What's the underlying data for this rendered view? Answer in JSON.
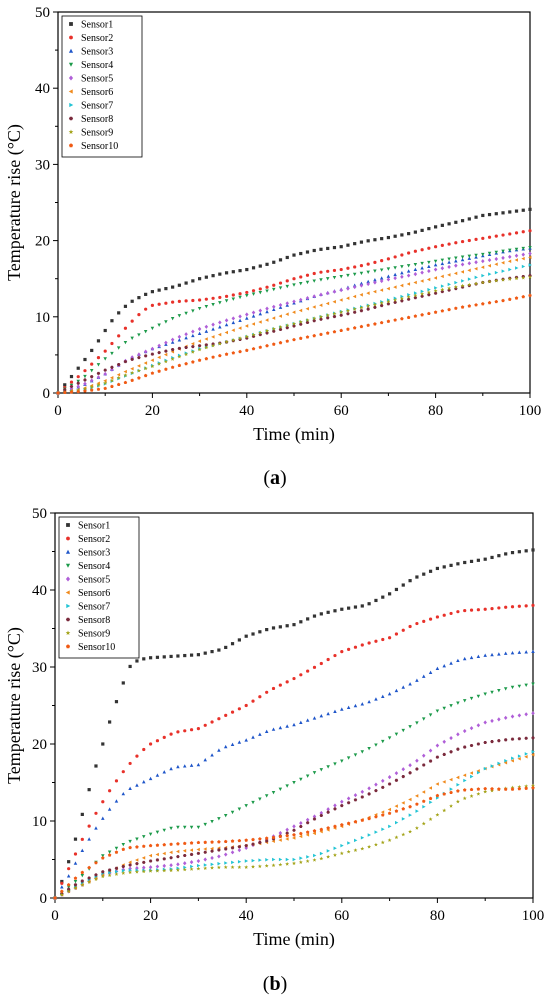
{
  "chart_data": [
    {
      "type": "scatter",
      "panel_label": "a",
      "xlabel": "Time (min)",
      "ylabel": "Temperature rise (°C)",
      "xlim": [
        0,
        100
      ],
      "ylim": [
        0,
        50
      ],
      "xticks": [
        0,
        20,
        40,
        60,
        80,
        100
      ],
      "yticks": [
        0,
        10,
        20,
        30,
        40,
        50
      ],
      "grid": false,
      "legend_position": "top-left",
      "series": [
        {
          "name": "Sensor1",
          "color": "#333333",
          "marker": "square",
          "x": [
            0,
            2,
            5,
            8,
            10,
            12,
            15,
            18,
            20,
            25,
            30,
            35,
            40,
            45,
            50,
            55,
            60,
            65,
            70,
            75,
            80,
            85,
            90,
            95,
            100
          ],
          "y": [
            0,
            1.5,
            3.8,
            6.3,
            8.2,
            10,
            11.8,
            12.8,
            13.3,
            14,
            15,
            15.7,
            16.2,
            17,
            18.1,
            18.8,
            19.2,
            19.9,
            20.4,
            21,
            21.8,
            22.5,
            23.3,
            23.7,
            24.1
          ]
        },
        {
          "name": "Sensor2",
          "color": "#e8312a",
          "marker": "circle",
          "x": [
            0,
            5,
            10,
            15,
            18,
            20,
            25,
            30,
            35,
            40,
            45,
            50,
            55,
            60,
            65,
            70,
            75,
            80,
            85,
            90,
            95,
            100
          ],
          "y": [
            0,
            2.5,
            5.5,
            9,
            10.8,
            11.5,
            12,
            12.2,
            12.6,
            13.2,
            14,
            15,
            15.8,
            16.2,
            16.8,
            17.6,
            18.5,
            19.2,
            19.8,
            20.3,
            20.8,
            21.3
          ]
        },
        {
          "name": "Sensor3",
          "color": "#1e55c9",
          "marker": "triangle-up",
          "x": [
            0,
            5,
            10,
            15,
            20,
            25,
            30,
            35,
            40,
            45,
            50,
            55,
            60,
            65,
            70,
            75,
            80,
            85,
            90,
            95,
            100
          ],
          "y": [
            0,
            0.9,
            2.5,
            4.5,
            5.8,
            6.8,
            7.8,
            8.8,
            9.8,
            10.8,
            11.8,
            12.8,
            13.6,
            14.5,
            15.3,
            16.1,
            16.8,
            17.4,
            18,
            18.6,
            19
          ]
        },
        {
          "name": "Sensor4",
          "color": "#1c9a4a",
          "marker": "triangle-down",
          "x": [
            0,
            5,
            10,
            15,
            20,
            25,
            30,
            35,
            40,
            45,
            50,
            55,
            60,
            65,
            70,
            75,
            80,
            85,
            90,
            95,
            100
          ],
          "y": [
            0,
            1.8,
            4.5,
            7,
            8.5,
            10,
            11.1,
            12,
            12.8,
            13.5,
            14.2,
            14.8,
            15.3,
            15.8,
            16.3,
            16.8,
            17.3,
            17.8,
            18.2,
            18.7,
            19.1
          ]
        },
        {
          "name": "Sensor5",
          "color": "#b05fd8",
          "marker": "diamond",
          "x": [
            0,
            5,
            10,
            15,
            20,
            25,
            30,
            35,
            40,
            45,
            50,
            55,
            60,
            65,
            70,
            75,
            80,
            85,
            90,
            95,
            100
          ],
          "y": [
            0,
            1,
            2.5,
            4.5,
            5.8,
            7.2,
            8.4,
            9.4,
            10.3,
            11.2,
            12,
            12.8,
            13.5,
            14.2,
            14.9,
            15.5,
            16.2,
            16.8,
            17.3,
            17.8,
            18.3
          ]
        },
        {
          "name": "Sensor6",
          "color": "#f08a1c",
          "marker": "triangle-left",
          "x": [
            0,
            5,
            10,
            15,
            20,
            25,
            30,
            35,
            40,
            45,
            50,
            55,
            60,
            65,
            70,
            75,
            80,
            85,
            90,
            95,
            100
          ],
          "y": [
            0,
            0.5,
            1.6,
            3,
            4.3,
            5.6,
            6.8,
            7.8,
            8.8,
            9.7,
            10.6,
            11.4,
            12.2,
            13,
            13.7,
            14.4,
            15.1,
            15.8,
            16.5,
            17.2,
            17.8
          ]
        },
        {
          "name": "Sensor7",
          "color": "#22c4d4",
          "marker": "triangle-right",
          "x": [
            0,
            5,
            10,
            15,
            20,
            25,
            30,
            35,
            40,
            45,
            50,
            55,
            60,
            65,
            70,
            75,
            80,
            85,
            90,
            95,
            100
          ],
          "y": [
            0,
            0.3,
            1.2,
            2.4,
            3.6,
            4.8,
            5.8,
            6.6,
            7.4,
            8.3,
            9.1,
            9.9,
            10.7,
            11.4,
            12.2,
            13,
            13.8,
            14.6,
            15.4,
            16.1,
            16.8
          ]
        },
        {
          "name": "Sensor8",
          "color": "#7a2a3c",
          "marker": "hexagon",
          "x": [
            0,
            5,
            10,
            15,
            20,
            25,
            30,
            35,
            40,
            45,
            50,
            55,
            60,
            65,
            70,
            75,
            80,
            85,
            90,
            95,
            100
          ],
          "y": [
            0,
            1.5,
            3,
            4.3,
            5.1,
            5.8,
            6.2,
            6.6,
            7.2,
            8,
            8.8,
            9.6,
            10.2,
            10.9,
            11.7,
            12.4,
            13.1,
            13.8,
            14.5,
            15,
            15.4
          ]
        },
        {
          "name": "Sensor9",
          "color": "#a3a318",
          "marker": "star",
          "x": [
            0,
            5,
            10,
            15,
            20,
            25,
            30,
            35,
            40,
            45,
            50,
            55,
            60,
            65,
            70,
            75,
            80,
            85,
            90,
            95,
            100
          ],
          "y": [
            0,
            0.4,
            1.3,
            2.5,
            3.5,
            4.6,
            5.7,
            6.6,
            7.4,
            8.3,
            9.1,
            9.9,
            10.6,
            11.3,
            12,
            12.7,
            13.4,
            14,
            14.5,
            14.9,
            15.2
          ]
        },
        {
          "name": "Sensor10",
          "color": "#f05a14",
          "marker": "pentagon",
          "x": [
            0,
            5,
            10,
            15,
            20,
            25,
            30,
            35,
            40,
            45,
            50,
            55,
            60,
            65,
            70,
            75,
            80,
            85,
            90,
            95,
            100
          ],
          "y": [
            0,
            0.2,
            0.6,
            1.5,
            2.6,
            3.5,
            4.3,
            5,
            5.6,
            6.3,
            7,
            7.6,
            8.2,
            8.8,
            9.4,
            10,
            10.6,
            11.2,
            11.7,
            12.2,
            12.8
          ]
        }
      ]
    },
    {
      "type": "scatter",
      "panel_label": "b",
      "xlabel": "Time (min)",
      "ylabel": "Temperature rise (°C)",
      "xlim": [
        0,
        100
      ],
      "ylim": [
        0,
        50
      ],
      "xticks": [
        0,
        20,
        40,
        60,
        80,
        100
      ],
      "yticks": [
        0,
        10,
        20,
        30,
        40,
        50
      ],
      "grid": false,
      "legend_position": "top-left",
      "series": [
        {
          "name": "Sensor1",
          "color": "#333333",
          "marker": "square",
          "x": [
            0,
            2,
            4,
            6,
            8,
            10,
            12,
            14,
            16,
            18,
            20,
            25,
            30,
            35,
            40,
            45,
            50,
            55,
            60,
            65,
            70,
            75,
            80,
            85,
            90,
            95,
            100
          ],
          "y": [
            0,
            3,
            7,
            11.5,
            16,
            20,
            24,
            27.5,
            30.5,
            31,
            31.2,
            31.4,
            31.6,
            32.3,
            34,
            35,
            35.5,
            36.8,
            37.5,
            38,
            39.5,
            41.5,
            42.8,
            43.5,
            44,
            44.8,
            45.2
          ]
        },
        {
          "name": "Sensor2",
          "color": "#e8312a",
          "marker": "circle",
          "x": [
            0,
            3,
            6,
            9,
            12,
            15,
            18,
            20,
            25,
            30,
            35,
            40,
            45,
            50,
            55,
            60,
            65,
            70,
            75,
            80,
            85,
            90,
            95,
            100
          ],
          "y": [
            0,
            4,
            8,
            11.5,
            14.5,
            17,
            19,
            20,
            21.5,
            22,
            23.5,
            25,
            27,
            28.5,
            30.2,
            32,
            33,
            33.8,
            35.5,
            36.5,
            37.3,
            37.5,
            37.8,
            38
          ]
        },
        {
          "name": "Sensor3",
          "color": "#1e55c9",
          "marker": "triangle-up",
          "x": [
            0,
            3,
            6,
            9,
            12,
            15,
            20,
            25,
            30,
            35,
            40,
            45,
            50,
            55,
            60,
            65,
            70,
            75,
            80,
            85,
            90,
            95,
            100
          ],
          "y": [
            0,
            3,
            6.5,
            9.5,
            12,
            14,
            15.5,
            17,
            17.3,
            19.5,
            20.5,
            21.8,
            22.5,
            23.5,
            24.5,
            25.3,
            26.5,
            28,
            29.8,
            31,
            31.5,
            31.8,
            32
          ]
        },
        {
          "name": "Sensor4",
          "color": "#1c9a4a",
          "marker": "triangle-down",
          "x": [
            0,
            5,
            10,
            15,
            20,
            25,
            30,
            35,
            40,
            45,
            50,
            55,
            60,
            65,
            70,
            75,
            80,
            85,
            90,
            95,
            100
          ],
          "y": [
            0,
            2.5,
            5.5,
            7.2,
            8.3,
            9.2,
            9.2,
            10.5,
            12,
            13.5,
            15,
            16.5,
            17.8,
            19.2,
            20.8,
            22.5,
            24.3,
            25.5,
            26.5,
            27.3,
            27.8
          ]
        },
        {
          "name": "Sensor5",
          "color": "#b05fd8",
          "marker": "diamond",
          "x": [
            0,
            5,
            10,
            15,
            20,
            25,
            30,
            35,
            40,
            45,
            50,
            55,
            60,
            65,
            70,
            75,
            80,
            85,
            90,
            95,
            100
          ],
          "y": [
            0,
            1.5,
            3,
            3.8,
            4,
            4.3,
            4.8,
            5.5,
            6.5,
            7.8,
            9.3,
            10.8,
            12.5,
            14,
            15.7,
            17.5,
            19.8,
            21.5,
            22.8,
            23.5,
            24
          ]
        },
        {
          "name": "Sensor6",
          "color": "#f08a1c",
          "marker": "triangle-left",
          "x": [
            0,
            5,
            10,
            15,
            20,
            25,
            30,
            35,
            40,
            45,
            50,
            55,
            60,
            65,
            70,
            75,
            80,
            85,
            90,
            95,
            100
          ],
          "y": [
            0,
            1.5,
            3,
            4.5,
            5.5,
            6,
            6.3,
            6.5,
            6.8,
            7.3,
            7.8,
            8.5,
            9.3,
            10.3,
            11.5,
            13,
            14.8,
            15.8,
            16.8,
            17.7,
            18.6
          ]
        },
        {
          "name": "Sensor7",
          "color": "#22c4d4",
          "marker": "triangle-right",
          "x": [
            0,
            5,
            10,
            15,
            20,
            25,
            30,
            35,
            40,
            45,
            50,
            55,
            60,
            65,
            70,
            75,
            80,
            85,
            90,
            95,
            100
          ],
          "y": [
            0,
            1.8,
            3.2,
            3.6,
            3.6,
            3.8,
            4.2,
            4.5,
            4.8,
            5,
            5,
            5.6,
            6.8,
            8,
            9.3,
            11,
            13,
            15,
            16.8,
            18,
            19
          ]
        },
        {
          "name": "Sensor8",
          "color": "#7a2a3c",
          "marker": "hexagon",
          "x": [
            0,
            5,
            10,
            15,
            20,
            25,
            30,
            35,
            40,
            45,
            50,
            55,
            60,
            65,
            70,
            75,
            80,
            85,
            90,
            95,
            100
          ],
          "y": [
            0,
            2,
            3.4,
            4.2,
            4.8,
            5.3,
            5.8,
            6.3,
            6.8,
            7.5,
            8.8,
            10.5,
            12,
            13.3,
            14.8,
            16.5,
            18.3,
            19.5,
            20.2,
            20.6,
            20.8
          ]
        },
        {
          "name": "Sensor9",
          "color": "#a3a318",
          "marker": "star",
          "x": [
            0,
            5,
            10,
            15,
            20,
            25,
            30,
            35,
            40,
            45,
            50,
            55,
            60,
            65,
            70,
            75,
            80,
            85,
            90,
            95,
            100
          ],
          "y": [
            0,
            1.5,
            2.8,
            3.3,
            3.5,
            3.6,
            3.8,
            4,
            4,
            4.2,
            4.5,
            5,
            5.8,
            6.5,
            7.5,
            8.8,
            10.8,
            12.8,
            13.8,
            14.3,
            14.6
          ]
        },
        {
          "name": "Sensor10",
          "color": "#f05a14",
          "marker": "pentagon",
          "x": [
            0,
            5,
            10,
            15,
            20,
            25,
            30,
            35,
            40,
            45,
            50,
            55,
            60,
            65,
            70,
            75,
            80,
            85,
            90,
            95,
            100
          ],
          "y": [
            0,
            3,
            5.2,
            6.5,
            6.8,
            7,
            7.2,
            7.3,
            7.5,
            7.8,
            8.2,
            8.8,
            9.5,
            10.2,
            11,
            12,
            13.3,
            14,
            14.2,
            14.1,
            14.3
          ]
        }
      ]
    }
  ]
}
